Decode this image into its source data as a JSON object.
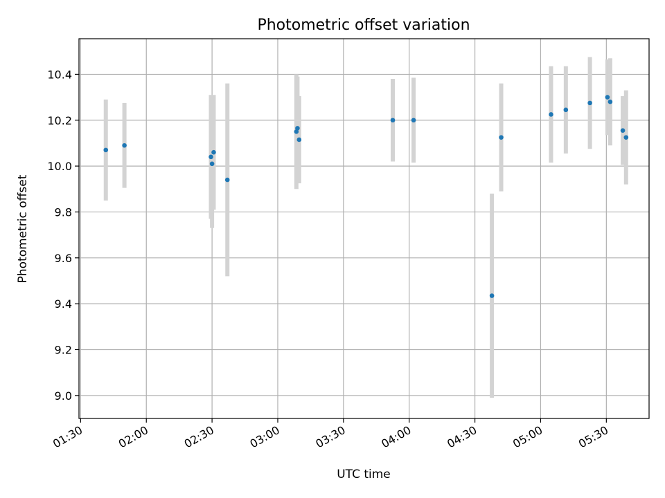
{
  "chart_data": {
    "type": "scatter",
    "title": "Photometric offset variation",
    "xlabel": "UTC time",
    "ylabel": "Photometric offset",
    "x_ticks": [
      "01:30",
      "02:00",
      "02:30",
      "03:00",
      "03:30",
      "04:00",
      "04:30",
      "05:00",
      "05:30"
    ],
    "y_ticks": [
      "9.0",
      "9.2",
      "9.4",
      "9.6",
      "9.8",
      "10.0",
      "10.2",
      "10.4"
    ],
    "xlim": [
      "01:29:15",
      "05:49:30"
    ],
    "ylim": [
      8.9,
      10.555
    ],
    "grid": true,
    "marker_color": "#1f77b4",
    "errorbar_color": "#d3d3d3",
    "points": [
      {
        "time": "01:41:30",
        "offset": 10.07,
        "err": 0.22
      },
      {
        "time": "01:50:00",
        "offset": 10.09,
        "err": 0.185
      },
      {
        "time": "02:29:30",
        "offset": 10.04,
        "err": 0.27
      },
      {
        "time": "02:30:00",
        "offset": 10.01,
        "err": 0.28
      },
      {
        "time": "02:30:45",
        "offset": 10.06,
        "err": 0.25
      },
      {
        "time": "02:37:00",
        "offset": 9.94,
        "err": 0.42
      },
      {
        "time": "03:08:30",
        "offset": 10.15,
        "err": 0.25
      },
      {
        "time": "03:09:00",
        "offset": 10.165,
        "err": 0.225
      },
      {
        "time": "03:09:45",
        "offset": 10.115,
        "err": 0.19
      },
      {
        "time": "03:52:30",
        "offset": 10.2,
        "err": 0.18
      },
      {
        "time": "04:02:00",
        "offset": 10.2,
        "err": 0.185
      },
      {
        "time": "04:37:45",
        "offset": 9.435,
        "err": 0.445
      },
      {
        "time": "04:42:00",
        "offset": 10.125,
        "err": 0.235
      },
      {
        "time": "05:04:45",
        "offset": 10.225,
        "err": 0.21
      },
      {
        "time": "05:11:30",
        "offset": 10.245,
        "err": 0.19
      },
      {
        "time": "05:22:30",
        "offset": 10.275,
        "err": 0.2
      },
      {
        "time": "05:30:30",
        "offset": 10.3,
        "err": 0.165
      },
      {
        "time": "05:31:45",
        "offset": 10.28,
        "err": 0.19
      },
      {
        "time": "05:37:30",
        "offset": 10.155,
        "err": 0.15
      },
      {
        "time": "05:39:00",
        "offset": 10.125,
        "err": 0.205
      }
    ]
  }
}
